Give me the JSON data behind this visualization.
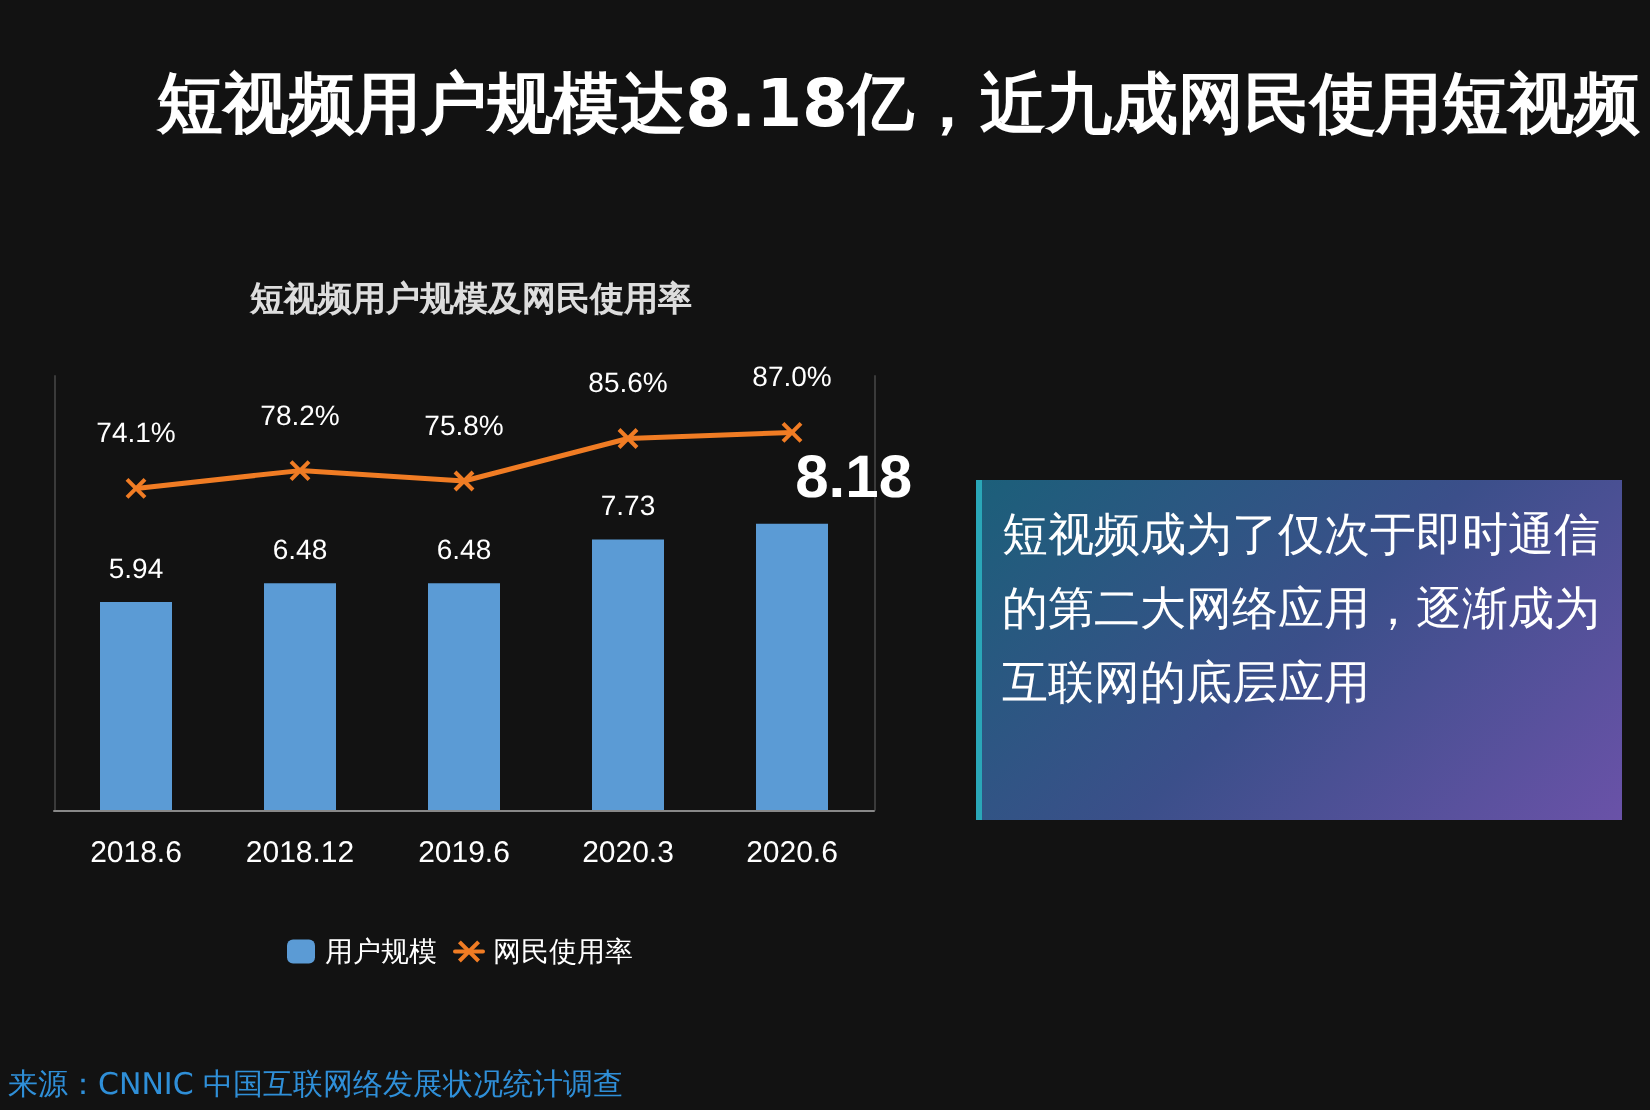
{
  "chart_data": {
    "type": "bar",
    "title": "短视频用户规模达8.18亿，近九成网民使用短视频",
    "subtitle": "短视频用户规模及网民使用率",
    "categories": [
      "2018.6",
      "2018.12",
      "2019.6",
      "2020.3",
      "2020.6"
    ],
    "series": [
      {
        "name": "用户规模",
        "color": "#5b9bd5",
        "values": [
          5.94,
          6.48,
          6.48,
          7.73,
          8.18
        ],
        "value_labels": [
          "5.94",
          "6.48",
          "6.48",
          "7.73",
          "8.18"
        ]
      },
      {
        "name": "网民使用率",
        "type": "line",
        "axis": "y2",
        "color": "#f07c24",
        "marker": "cross",
        "values": [
          74.1,
          78.2,
          75.8,
          85.6,
          87.0
        ],
        "value_labels": [
          "74.1%",
          "78.2%",
          "75.8%",
          "85.6%",
          "87.0%"
        ]
      }
    ],
    "annotations": [
      "短视频成为了仅次于即时通信的第二大网络应用，逐渐成为互联网的底层应用",
      "来源：CNNIC 中国互联网络发展状况统计调查"
    ],
    "legend": "bottom",
    "tick_labels": "x",
    "ylim": [
      0,
      12.4
    ],
    "y2lim": [
      0,
      100
    ]
  }
}
